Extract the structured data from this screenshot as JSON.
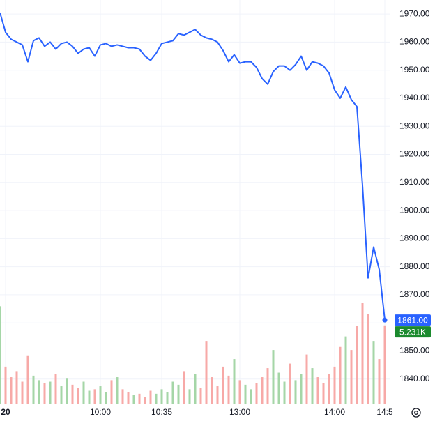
{
  "chart_data": {
    "type": "line",
    "categories": [
      null,
      "20",
      null,
      null,
      null,
      null,
      null,
      null,
      null,
      null,
      null,
      null,
      null,
      null,
      null,
      null,
      null,
      null,
      "10:00",
      null,
      null,
      null,
      null,
      null,
      null,
      null,
      null,
      null,
      null,
      "10:35",
      null,
      null,
      null,
      null,
      null,
      null,
      null,
      null,
      null,
      null,
      null,
      null,
      null,
      "13:00",
      null,
      null,
      null,
      null,
      null,
      null,
      null,
      null,
      null,
      null,
      null,
      null,
      null,
      null,
      null,
      null,
      "14:00",
      null,
      null,
      null,
      null,
      null,
      null,
      null,
      null,
      "14:5"
    ],
    "series": [
      {
        "name": "Price",
        "color": "#2962ff",
        "values": [
          1970.5,
          1963.5,
          1961,
          1960,
          1959,
          1953,
          1960.5,
          1961.5,
          1958.5,
          1960,
          1957.5,
          1959.5,
          1960,
          1958.5,
          1956,
          1957.5,
          1958,
          1955,
          1959,
          1959.5,
          1958.5,
          1959,
          1958.5,
          1958,
          1958,
          1957.5,
          1955,
          1953.5,
          1956,
          1959.5,
          1960,
          1960.5,
          1963,
          1962.5,
          1963.5,
          1964.5,
          1962.5,
          1961.5,
          1961,
          1960,
          1957,
          1953,
          1955.5,
          1952.5,
          1953,
          1953,
          1951,
          1947,
          1945,
          1949.5,
          1951.5,
          1951.5,
          1950,
          1952,
          1955,
          1950,
          1953,
          1952.5,
          1951.5,
          1949,
          1943,
          1940,
          1944,
          1939.5,
          1937,
          1909,
          1876,
          1887,
          1879,
          1861
        ],
        "value_labels": [
          null,
          null,
          null,
          null,
          null,
          null,
          null,
          null,
          null,
          null,
          null,
          null,
          null,
          null,
          null,
          null,
          null,
          null,
          null,
          null,
          null,
          null,
          null,
          null,
          null,
          null,
          null,
          null,
          null,
          null,
          null,
          null,
          null,
          null,
          null,
          null,
          null,
          null,
          null,
          null,
          null,
          null,
          null,
          null,
          null,
          null,
          null,
          null,
          null,
          null,
          null,
          null,
          null,
          null,
          null,
          null,
          null,
          null,
          null,
          null,
          null,
          null,
          null,
          null,
          null,
          null,
          null,
          null,
          null,
          "1861.00"
        ]
      },
      {
        "name": "Volume",
        "type": "bar",
        "up_color": "#a5d6a7",
        "down_color": "#f7a9a7",
        "label_color": "#1b8a2e",
        "values": [
          6.5,
          2.5,
          1.8,
          2.2,
          1.5,
          3.2,
          1.9,
          1.6,
          1.4,
          1.5,
          2.0,
          1.2,
          1.7,
          1.3,
          1.1,
          1.5,
          0.9,
          1.0,
          1.2,
          0.8,
          1.6,
          1.8,
          1.0,
          0.8,
          0.6,
          0.7,
          0.5,
          0.9,
          0.7,
          1.0,
          0.8,
          1.5,
          1.3,
          2.2,
          1.0,
          2.0,
          1.1,
          4.2,
          1.8,
          1.2,
          2.5,
          1.9,
          3.0,
          1.6,
          1.3,
          1.0,
          1.4,
          1.8,
          2.4,
          3.6,
          2.1,
          1.5,
          2.7,
          1.6,
          2.0,
          3.3,
          2.4,
          1.8,
          1.4,
          2.0,
          2.5,
          3.8,
          4.5,
          3.6,
          5.2,
          6.7,
          6.0,
          4.2,
          3.0,
          5.231
        ],
        "value_labels": [
          null,
          null,
          null,
          null,
          null,
          null,
          null,
          null,
          null,
          null,
          null,
          null,
          null,
          null,
          null,
          null,
          null,
          null,
          null,
          null,
          null,
          null,
          null,
          null,
          null,
          null,
          null,
          null,
          null,
          null,
          null,
          null,
          null,
          null,
          null,
          null,
          null,
          null,
          null,
          null,
          null,
          null,
          null,
          null,
          null,
          null,
          null,
          null,
          null,
          null,
          null,
          null,
          null,
          null,
          null,
          null,
          null,
          null,
          null,
          null,
          null,
          null,
          null,
          null,
          null,
          null,
          null,
          null,
          null,
          "5.231K"
        ]
      }
    ],
    "ylim": [
      1831,
      1975
    ],
    "yticks": [
      {
        "value": 1840,
        "label": "1840.00"
      },
      {
        "value": 1850,
        "label": "1850.00"
      },
      {
        "value": 1860,
        "label": "1860.00"
      },
      {
        "value": 1870,
        "label": "1870.00"
      },
      {
        "value": 1880,
        "label": "1880.00"
      },
      {
        "value": 1890,
        "label": "1890.00"
      },
      {
        "value": 1900,
        "label": "1900.00"
      },
      {
        "value": 1910,
        "label": "1910.00"
      },
      {
        "value": 1920,
        "label": "1920.00"
      },
      {
        "value": 1930,
        "label": "1930.00"
      },
      {
        "value": 1940,
        "label": "1940.00"
      },
      {
        "value": 1950,
        "label": "1950.00"
      },
      {
        "value": 1960,
        "label": "1960.00"
      },
      {
        "value": 1970,
        "label": "1970.00"
      }
    ],
    "grid": true
  }
}
